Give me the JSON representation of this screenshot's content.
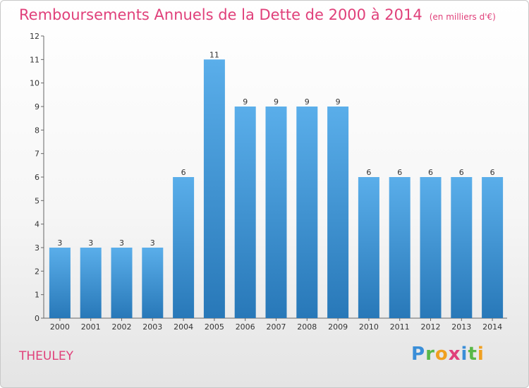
{
  "title": "Remboursements Annuels de la Dette de 2000 à 2014",
  "unit": "(en milliers d'€)",
  "town": "THEULEY",
  "logo": "Proxiti",
  "colors": {
    "title": "#e0407a",
    "bar_top": "#5aaeea",
    "bar_bottom": "#2878b8"
  },
  "chart_data": {
    "type": "bar",
    "title": "Remboursements Annuels de la Dette de 2000 à 2014",
    "subtitle": "(en milliers d'€)",
    "categories": [
      "2000",
      "2001",
      "2002",
      "2003",
      "2004",
      "2005",
      "2006",
      "2007",
      "2008",
      "2009",
      "2010",
      "2011",
      "2012",
      "2013",
      "2014"
    ],
    "values": [
      3,
      3,
      3,
      3,
      6,
      11,
      9,
      9,
      9,
      9,
      6,
      6,
      6,
      6,
      6
    ],
    "ylim": [
      0,
      12
    ],
    "yticks": [
      0,
      1,
      2,
      3,
      4,
      5,
      6,
      7,
      8,
      9,
      10,
      11,
      12
    ],
    "grid": false,
    "legend": "none",
    "data_labels": true
  }
}
